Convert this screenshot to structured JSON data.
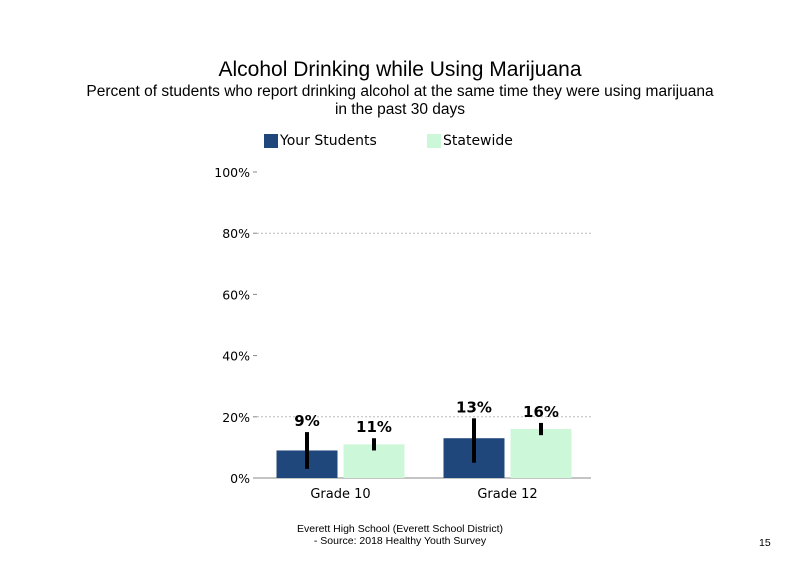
{
  "chart_data": {
    "type": "bar",
    "title": "Alcohol Drinking  while  Using  Marijuana",
    "subtitle_lines": [
      "Percent of students who report drinking alcohol at the same time they were using marijuana",
      "in the past 30 days"
    ],
    "categories": [
      "Grade 10",
      "Grade 12"
    ],
    "series": [
      {
        "name": "Your Students",
        "color": "#1f477b",
        "values": [
          9,
          13
        ],
        "labels": [
          "9%",
          "13%"
        ],
        "error_low": [
          3,
          5
        ],
        "error_high": [
          15,
          19.5
        ]
      },
      {
        "name": "Statewide",
        "color": "#ccf7d9",
        "values": [
          11,
          16
        ],
        "labels": [
          "11%",
          "16%"
        ],
        "error_low": [
          9,
          14
        ],
        "error_high": [
          13,
          18
        ]
      }
    ],
    "ylim": [
      0,
      100
    ],
    "yticks": [
      0,
      20,
      40,
      60,
      80,
      100
    ],
    "ytick_labels": [
      "0%",
      "20%",
      "40%",
      "60%",
      "80%",
      "100%"
    ],
    "gridlines": [
      20,
      80
    ],
    "legend_position": "top"
  },
  "footer": {
    "line1": "Everett High  School  (Everett School District)",
    "line2": "- Source: 2018 Healthy  Youth Survey"
  },
  "page_number": "15"
}
